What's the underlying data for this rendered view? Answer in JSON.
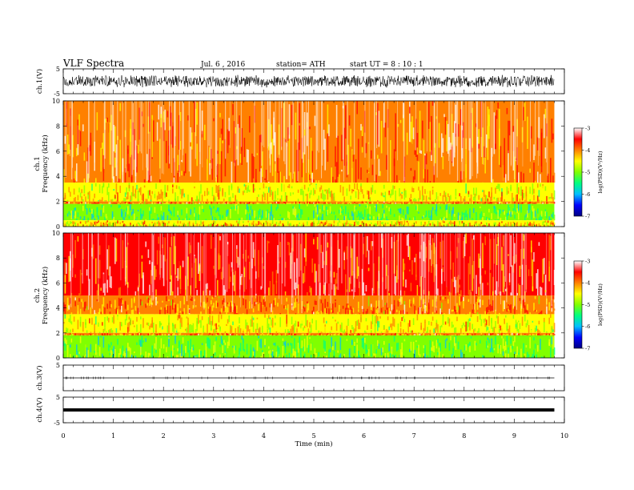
{
  "header": {
    "title": "VLF  Spectra",
    "date": "Jul.  6  , 2016",
    "station": "station= ATH",
    "start": "start  UT  =    8  : 10 : 1"
  },
  "chart_data": [
    {
      "type": "line",
      "name": "ch1-waveform",
      "ylabel": "ch.1(V)",
      "ylim": [
        -5,
        5
      ],
      "yticks": [
        5,
        -5
      ],
      "trace_style": "dense-noise",
      "trace_amplitude_v": 2.6,
      "color": "#000000"
    },
    {
      "type": "heatmap",
      "name": "ch1-spectrogram",
      "ylabel": "ch.1  Frequency  (kHz)",
      "ylim": [
        0,
        10
      ],
      "yticks": [
        0,
        2,
        4,
        6,
        8,
        10
      ],
      "colorbar": {
        "label": "log(PSD)(V²/Hz)",
        "ticks": [
          -3,
          -4,
          -5,
          -6,
          -7
        ],
        "range": [
          -7,
          -3
        ]
      },
      "bands_khz": [
        {
          "from": 3.5,
          "to": 10,
          "level": -3.8
        },
        {
          "from": 2.0,
          "to": 3.5,
          "level": -4.5
        },
        {
          "from": 1.8,
          "to": 2.0,
          "level": -4.0
        },
        {
          "from": 0.5,
          "to": 1.8,
          "level": -5.2
        },
        {
          "from": 0.0,
          "to": 0.5,
          "level": -4.3
        }
      ]
    },
    {
      "type": "heatmap",
      "name": "ch2-spectrogram",
      "ylabel": "ch.2  Frequency  (kHz)",
      "ylim": [
        0,
        10
      ],
      "yticks": [
        0,
        2,
        4,
        6,
        8,
        10
      ],
      "colorbar": {
        "label": "log(PSD)(V²/Hz)",
        "ticks": [
          -3,
          -4,
          -5,
          -6,
          -7
        ],
        "range": [
          -7,
          -3
        ]
      },
      "bands_khz": [
        {
          "from": 5.0,
          "to": 10,
          "level": -3.7
        },
        {
          "from": 3.5,
          "to": 5.0,
          "level": -4.0
        },
        {
          "from": 2.0,
          "to": 3.5,
          "level": -4.5
        },
        {
          "from": 1.8,
          "to": 2.0,
          "level": -4.0
        },
        {
          "from": 0.0,
          "to": 1.8,
          "level": -5.1
        }
      ]
    },
    {
      "type": "line",
      "name": "ch3-waveform",
      "ylabel": "ch.3(V)",
      "ylim": [
        -5,
        5
      ],
      "yticks": [
        5
      ],
      "trace_style": "near-flat",
      "trace_value_v": 0,
      "color": "#000000"
    },
    {
      "type": "line",
      "name": "ch4-waveform",
      "ylabel": "ch.4(V)",
      "ylim": [
        -5,
        5
      ],
      "yticks": [
        5,
        -5
      ],
      "trace_style": "thick-flat",
      "trace_value_v": 0,
      "color": "#000000"
    }
  ],
  "x_axis": {
    "label": "Time  (min)",
    "xlim": [
      0,
      10
    ],
    "ticks": [
      0,
      1,
      2,
      3,
      4,
      5,
      6,
      7,
      8,
      9,
      10
    ],
    "data_end_min": 9.8
  },
  "colorscale": [
    "#000080",
    "#0000ff",
    "#00bfff",
    "#00ff80",
    "#80ff00",
    "#ffff00",
    "#ff8000",
    "#ff0000",
    "#ffffff"
  ]
}
